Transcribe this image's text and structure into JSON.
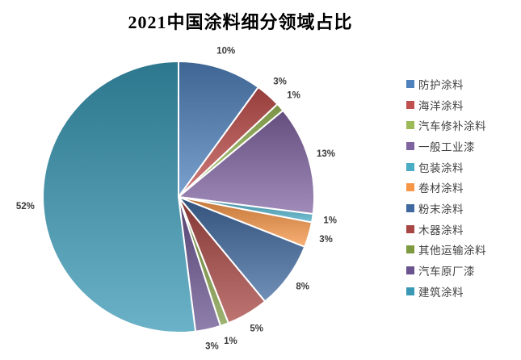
{
  "chart_data": {
    "type": "pie",
    "title": "2021中国涂料细分领域占比",
    "categories": [
      "防护涂料",
      "海洋涂料",
      "汽车修补涂料",
      "一般工业漆",
      "包装涂料",
      "卷材涂料",
      "粉末涂料",
      "木器涂料",
      "其他运输涂料",
      "汽车原厂漆",
      "建筑涂料"
    ],
    "values": [
      10,
      3,
      1,
      13,
      1,
      3,
      8,
      5,
      1,
      3,
      52
    ],
    "value_labels": [
      "10%",
      "3%",
      "1%",
      "13%",
      "1%",
      "3%",
      "8%",
      "5%",
      "1%",
      "3%",
      "52%"
    ],
    "colors": [
      "#4F81BD",
      "#C0504D",
      "#9BBB59",
      "#8064A2",
      "#4BACC6",
      "#F79646",
      "#40699F",
      "#A84743",
      "#7E9A41",
      "#6A5490",
      "#3998B5"
    ],
    "slice_border_color": "#FFFFFF",
    "label_color": "#3B3B3B",
    "legend_position": "right",
    "start_angle": "12-oclock-clockwise",
    "background": "#FFFFFF"
  }
}
